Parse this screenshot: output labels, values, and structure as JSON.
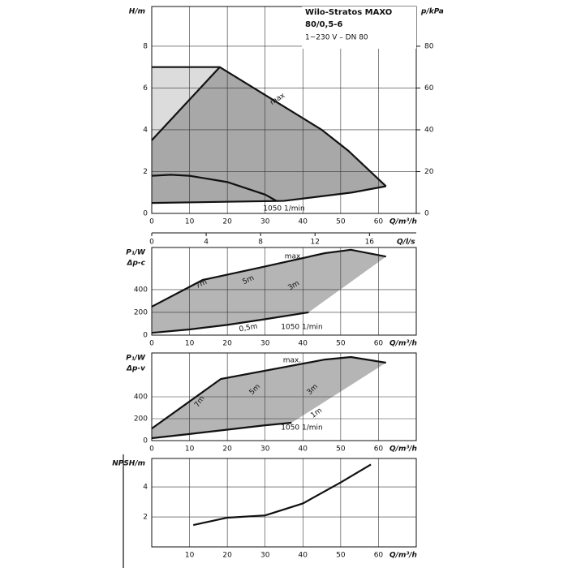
{
  "chart_data": [
    {
      "type": "line",
      "title": "Wilo-Stratos MAXO",
      "model": "80/0,5-6",
      "subtitle": "1~230 V – DN 80",
      "ylabel": "H/m",
      "y2label": "p/kPa",
      "xlabel": "Q/m³/h",
      "x2label": "Q/l/s",
      "xlim": [
        0,
        70
      ],
      "xticks": [
        0,
        10,
        20,
        30,
        40,
        50,
        60
      ],
      "x2lim": [
        0,
        19.44
      ],
      "x2ticks": [
        0,
        4,
        8,
        12,
        16
      ],
      "ylim": [
        0,
        9.9
      ],
      "yticks": [
        0,
        2,
        4,
        6,
        8
      ],
      "y2lim": [
        0,
        99
      ],
      "y2ticks": [
        0,
        20,
        40,
        60,
        80
      ],
      "grid": true,
      "fill_color": "#a8a8a8",
      "light_fill_color": "#dcdcdc",
      "series": [
        {
          "name": "max",
          "color": "#111111",
          "x": [
            0,
            18,
            45,
            52,
            62
          ],
          "values": [
            7,
            7,
            4,
            3,
            1.3
          ]
        },
        {
          "color": "#111111",
          "x": [
            0,
            18
          ],
          "values": [
            3.5,
            7
          ]
        },
        {
          "name": "1050 1/min",
          "color": "#111111",
          "x": [
            0,
            5,
            10,
            20,
            30,
            33
          ],
          "values": [
            1.8,
            1.85,
            1.8,
            1.5,
            0.9,
            0.6
          ]
        },
        {
          "color": "#111111",
          "x": [
            0,
            35,
            53,
            62
          ],
          "values": [
            0.5,
            0.6,
            1,
            1.3
          ]
        }
      ]
    },
    {
      "type": "line",
      "ylabel": "P₁/W",
      "ylabel2": "Δp-c",
      "xlabel": "Q/m³/h",
      "xlim": [
        0,
        70
      ],
      "xticks": [
        0,
        10,
        20,
        30,
        40,
        50,
        60
      ],
      "ylim": [
        0,
        770
      ],
      "yticks": [
        0,
        200,
        400
      ],
      "grid": true,
      "fill_color": "#a8a8a8",
      "annotations": [
        "7m",
        "5m",
        "3m",
        "0,5m"
      ],
      "series": [
        {
          "name": "max.",
          "color": "#111111",
          "x": [
            0,
            13.5,
            28.6,
            45.8,
            52.7,
            62
          ],
          "values": [
            250,
            485,
            593,
            720,
            750,
            690
          ]
        },
        {
          "name": "1050 1/min",
          "color": "#111111",
          "x": [
            0,
            10,
            20,
            30,
            41.5
          ],
          "values": [
            20,
            50,
            90,
            140,
            200
          ]
        }
      ]
    },
    {
      "type": "line",
      "ylabel": "P₁/W",
      "ylabel2": "Δp-v",
      "xlabel": "Q/m³/h",
      "xlim": [
        0,
        70
      ],
      "xticks": [
        0,
        10,
        20,
        30,
        40,
        50,
        60
      ],
      "ylim": [
        0,
        800
      ],
      "yticks": [
        0,
        200,
        400
      ],
      "grid": true,
      "fill_color": "#a8a8a8",
      "annotations": [
        "7m",
        "5m",
        "3m",
        "1m"
      ],
      "series": [
        {
          "name": "max.",
          "color": "#111111",
          "x": [
            0,
            18.3,
            45.8,
            52.7,
            62
          ],
          "values": [
            110,
            563,
            740,
            763,
            711
          ]
        },
        {
          "name": "1050 1/min",
          "color": "#111111",
          "x": [
            0,
            10,
            20,
            30,
            37
          ],
          "values": [
            22,
            60,
            100,
            140,
            163
          ]
        }
      ]
    },
    {
      "type": "line",
      "ylabel": "NPSH/m",
      "xlabel": "Q/m³/h",
      "xlim": [
        0,
        70
      ],
      "xticks": [
        10,
        20,
        30,
        40,
        50,
        60
      ],
      "ylim": [
        0,
        5.9
      ],
      "yticks": [
        2,
        4
      ],
      "grid": true,
      "series": [
        {
          "color": "#111111",
          "x": [
            11,
            20,
            30,
            40,
            50,
            58
          ],
          "values": [
            1.46,
            1.95,
            2.1,
            2.9,
            4.3,
            5.5
          ]
        }
      ]
    }
  ]
}
